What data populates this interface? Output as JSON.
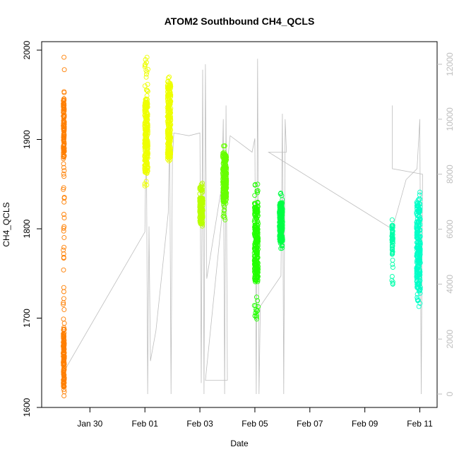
{
  "chart_data": {
    "type": "scatter",
    "title": "ATOM2 Southbound CH4_QCLS",
    "xlabel": "Date",
    "ylabel": "CH4_QCLS",
    "x_ticks": [
      {
        "label": "Jan 30",
        "day": 30
      },
      {
        "label": "Feb 01",
        "day": 32
      },
      {
        "label": "Feb 03",
        "day": 34
      },
      {
        "label": "Feb 05",
        "day": 36
      },
      {
        "label": "Feb 07",
        "day": 38
      },
      {
        "label": "Feb 09",
        "day": 40
      },
      {
        "label": "Feb 11",
        "day": 42
      }
    ],
    "xlim": [
      28.45,
      42.5
    ],
    "ylim": [
      1600,
      2000
    ],
    "y_ticks": [
      1600,
      1700,
      1800,
      1900,
      2000
    ],
    "y2_ticks": [
      0,
      2000,
      4000,
      6000,
      8000,
      10000,
      12000
    ],
    "y2lim": [
      -200,
      12300
    ],
    "secondary_color": "#bebebe",
    "series": [
      {
        "color": "#ff7f00",
        "x": 29.05,
        "width": 0.04,
        "lo": 1613,
        "hi": 1992,
        "dense_lo": 1622,
        "dense_hi": 1688,
        "dense2_lo": 1880,
        "dense2_hi": 1948,
        "n": 260
      },
      {
        "color": "#eeff00",
        "x": 32.05,
        "width": 0.12,
        "lo": 1848,
        "hi": 1992,
        "dense_lo": 1862,
        "dense_hi": 1945,
        "n": 260
      },
      {
        "color": "#eeff00",
        "x": 32.88,
        "width": 0.12,
        "lo": 1876,
        "hi": 1970,
        "dense_lo": 1880,
        "dense_hi": 1962,
        "n": 260
      },
      {
        "color": "#b8ff00",
        "x": 34.05,
        "width": 0.12,
        "lo": 1803,
        "hi": 1851,
        "dense_lo": 1805,
        "dense_hi": 1835,
        "n": 150
      },
      {
        "color": "#66ff00",
        "x": 34.9,
        "width": 0.14,
        "lo": 1810,
        "hi": 1893,
        "dense_lo": 1830,
        "dense_hi": 1885,
        "n": 220
      },
      {
        "color": "#22ff00",
        "x": 36.05,
        "width": 0.14,
        "lo": 1699,
        "hi": 1850,
        "dense_lo": 1740,
        "dense_hi": 1830,
        "n": 260
      },
      {
        "color": "#00ff44",
        "x": 36.95,
        "width": 0.12,
        "lo": 1778,
        "hi": 1840,
        "dense_lo": 1785,
        "dense_hi": 1830,
        "n": 200
      },
      {
        "color": "#00ffaa",
        "x": 41.0,
        "width": 0.04,
        "lo": 1738,
        "hi": 1810,
        "dense_lo": 1770,
        "dense_hi": 1805,
        "n": 60
      },
      {
        "color": "#00ffc8",
        "x": 41.95,
        "width": 0.14,
        "lo": 1713,
        "hi": 1841,
        "dense_lo": 1730,
        "dense_hi": 1830,
        "n": 240
      }
    ]
  }
}
